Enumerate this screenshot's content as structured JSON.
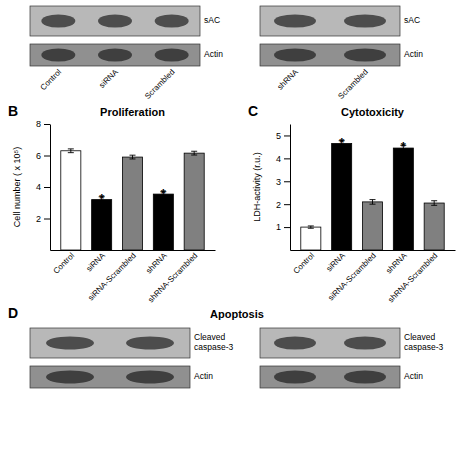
{
  "chart_data": [
    {
      "type": "blot",
      "categories": [
        "Control",
        "siRNA",
        "Scrambled"
      ],
      "row_labels": [
        [
          "sAC"
        ],
        [
          "Actin"
        ]
      ],
      "colors": [
        "#b8b8b8",
        "#909090"
      ]
    },
    {
      "type": "blot",
      "categories": [
        "shRNA",
        "Scrambled"
      ],
      "row_labels": [
        [
          "sAC"
        ],
        [
          "Actin"
        ]
      ],
      "colors": [
        "#b8b8b8",
        "#909090"
      ]
    },
    {
      "type": "bar",
      "title": "Proliferation",
      "categories": [
        "Control",
        "siRNA",
        "siRNA-Scrambled",
        "shRNA",
        "shRNA-Scrambled"
      ],
      "values": [
        6.3,
        3.2,
        5.9,
        3.55,
        6.15
      ],
      "errors": [
        0.12,
        0.18,
        0.12,
        0.15,
        0.12
      ],
      "colors": [
        "white",
        "black",
        "#808080",
        "black",
        "#808080"
      ],
      "ylabel": "Cell number ( x 10⁵)",
      "ylim": [
        0,
        8
      ],
      "yticks": [
        2,
        4,
        6,
        8
      ],
      "annotations": [
        {
          "text": "B"
        },
        {
          "text": "*",
          "category": "siRNA"
        },
        {
          "text": "*",
          "category": "shRNA"
        }
      ]
    },
    {
      "type": "bar",
      "title": "Cytotoxicity",
      "categories": [
        "Control",
        "siRNA",
        "siRNA-Scrambled",
        "shRNA",
        "shRNA-Scrambled"
      ],
      "values": [
        1.0,
        4.65,
        2.1,
        4.45,
        2.05
      ],
      "errors": [
        0.05,
        0.12,
        0.1,
        0.12,
        0.1
      ],
      "colors": [
        "white",
        "black",
        "#808080",
        "black",
        "#808080"
      ],
      "ylabel": "LDH-activity (r.u.)",
      "ylim": [
        0,
        5.5
      ],
      "yticks": [
        1,
        2,
        3,
        4,
        5
      ],
      "annotations": [
        {
          "text": "C"
        },
        {
          "text": "*",
          "category": "siRNA"
        },
        {
          "text": "*",
          "category": "shRNA"
        }
      ]
    },
    {
      "type": "blot",
      "title": "Apoptosis",
      "categories": [
        null,
        null
      ],
      "row_labels": [
        [
          "Cleaved",
          "caspase-3"
        ],
        [
          "Actin"
        ]
      ],
      "colors": [
        "#b8b8b8",
        "#909090"
      ],
      "annotations": [
        {
          "text": "D"
        }
      ]
    },
    {
      "type": "blot",
      "categories": [
        null,
        null
      ],
      "row_labels": [
        [
          "Cleaved",
          "caspase-3"
        ],
        [
          "Actin"
        ]
      ],
      "colors": [
        "#b8b8b8",
        "#909090"
      ]
    }
  ]
}
